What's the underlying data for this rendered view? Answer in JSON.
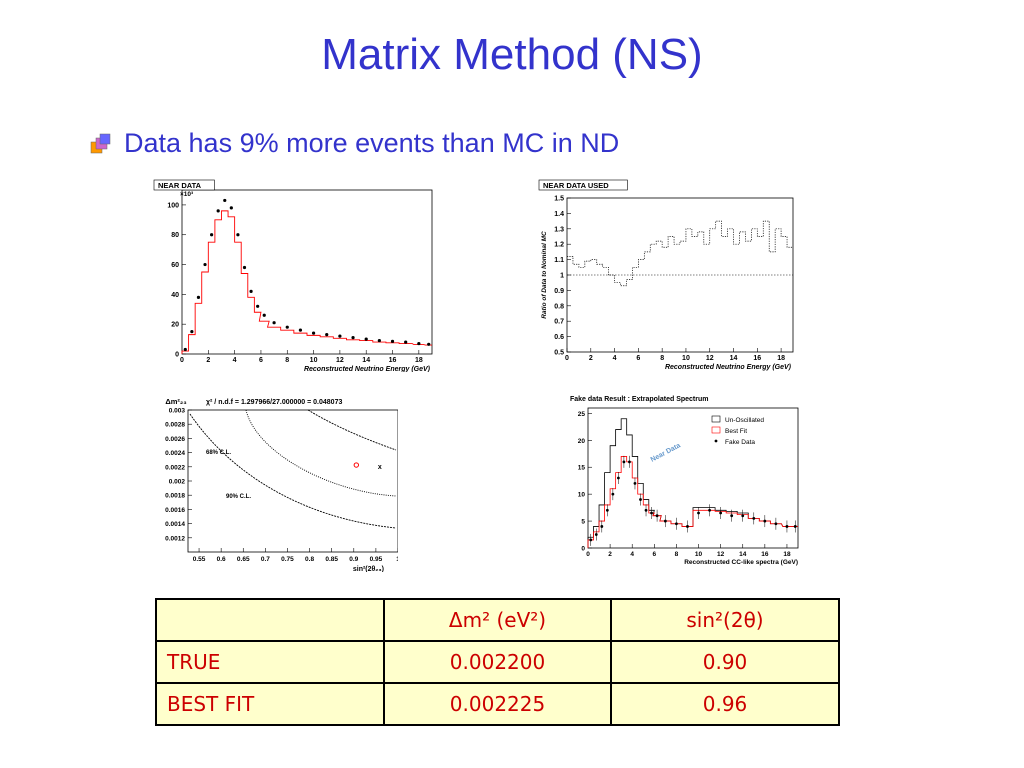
{
  "slide": {
    "title": "Matrix Method (NS)",
    "bullet": "Data has 9% more events than MC in ND",
    "bullet_icon": "stacked-squares-bullet-icon"
  },
  "plots": {
    "near_data": {
      "label": "NEAR DATA",
      "exponent": "×10³",
      "y_ticks": [
        "0",
        "20",
        "40",
        "60",
        "80",
        "100"
      ],
      "x_ticks": [
        "0",
        "2",
        "4",
        "6",
        "8",
        "10",
        "12",
        "14",
        "16",
        "18"
      ],
      "xlabel": "Reconstructed Neutrino Energy (GeV)"
    },
    "near_data_used": {
      "label": "NEAR DATA USED",
      "y_ticks": [
        "0.5",
        "0.6",
        "0.7",
        "0.8",
        "0.9",
        "1",
        "1.1",
        "1.2",
        "1.3",
        "1.4",
        "1.5"
      ],
      "x_ticks": [
        "0",
        "2",
        "4",
        "6",
        "8",
        "10",
        "12",
        "14",
        "16",
        "18"
      ],
      "xlabel": "Reconstructed Neutrino Energy (GeV)",
      "ylabel": "Ratio of Data to Nominal MC"
    },
    "contour": {
      "ylabel": "Δm²₂₃",
      "stat": "χ² / n.d.f = 1.297966/27.000000 = 0.048073",
      "y_ticks": [
        "0.003",
        "0.0028",
        "0.0026",
        "0.0024",
        "0.0022",
        "0.002",
        "0.0018",
        "0.0016",
        "0.0014",
        "0.0012"
      ],
      "x_ticks": [
        "0.55",
        "0.6",
        "0.65",
        "0.7",
        "0.75",
        "0.8",
        "0.85",
        "0.9",
        "0.95",
        "1"
      ],
      "xlabel": "sin²(2θ₂₃)",
      "cl68": "68% C.L.",
      "cl90": "90% C.L.",
      "marker": "x"
    },
    "fake_data": {
      "title": "Fake data Result : Extrapolated Spectrum",
      "legend": [
        "Un-Oscillated",
        "Best Fit",
        "Fake Data"
      ],
      "annotation": "Near Data",
      "y_ticks": [
        "0",
        "5",
        "10",
        "15",
        "20",
        "25"
      ],
      "x_ticks": [
        "0",
        "2",
        "4",
        "6",
        "8",
        "10",
        "12",
        "14",
        "16",
        "18"
      ],
      "xlabel": "Reconstructed CC-like spectra (GeV)"
    }
  },
  "table": {
    "header": [
      "",
      "Δm² (eV²)",
      "sin²(2θ)"
    ],
    "rows": [
      [
        "TRUE",
        "0.002200",
        "0.90"
      ],
      [
        "BEST FIT",
        "0.002225",
        "0.96"
      ]
    ]
  },
  "chart_data": [
    {
      "type": "line",
      "title": "NEAR DATA",
      "xlabel": "Reconstructed Neutrino Energy (GeV)",
      "ylabel": "",
      "xlim": [
        0,
        19
      ],
      "ylim": [
        0,
        110
      ],
      "series": [
        {
          "x": [
            0.25,
            0.75,
            1.25,
            1.75,
            2.25,
            2.75,
            3.25,
            3.75,
            4.25,
            4.75,
            5.25,
            5.75,
            6.25,
            7,
            8,
            9,
            10,
            11,
            12,
            13,
            14,
            15,
            16,
            17,
            18,
            18.75
          ],
          "values": [
            3,
            15,
            38,
            60,
            80,
            96,
            103,
            98,
            80,
            58,
            42,
            32,
            26,
            21,
            18,
            16,
            14,
            13,
            12,
            11,
            10,
            9,
            8.5,
            8,
            7,
            6.5
          ],
          "color": "#000000"
        },
        {
          "x": [
            0.25,
            0.75,
            1.25,
            1.75,
            2.25,
            2.75,
            3.25,
            3.75,
            4.25,
            4.75,
            5.25,
            5.75,
            6.25,
            7,
            8,
            9,
            10,
            11,
            12,
            13,
            14,
            15,
            16,
            17,
            18,
            18.75
          ],
          "values": [
            2,
            13,
            34,
            55,
            75,
            90,
            96,
            92,
            75,
            54,
            38,
            28,
            22,
            18,
            16,
            14,
            12.5,
            11.5,
            10.5,
            9.5,
            9,
            8,
            7.5,
            7,
            6.3,
            6
          ],
          "color": "#ff0000"
        }
      ]
    },
    {
      "type": "line",
      "title": "NEAR DATA USED",
      "xlabel": "Reconstructed Neutrino Energy (GeV)",
      "ylabel": "Ratio of Data to Nominal MC",
      "xlim": [
        0,
        19
      ],
      "ylim": [
        0.5,
        1.5
      ],
      "series": [
        {
          "x": [
            0,
            0.5,
            1,
            1.5,
            2,
            2.5,
            3,
            3.5,
            4,
            4.5,
            5,
            5.5,
            6,
            6.5,
            7,
            7.5,
            8,
            8.5,
            9,
            9.5,
            10,
            10.5,
            11,
            11.5,
            12,
            12.5,
            13,
            13.5,
            14,
            14.5,
            15,
            15.5,
            16,
            16.5,
            17,
            17.5,
            18,
            18.5
          ],
          "values": [
            1.12,
            1.07,
            1.05,
            1.09,
            1.1,
            1.07,
            1.05,
            1.0,
            0.95,
            0.93,
            0.97,
            1.05,
            1.1,
            1.15,
            1.2,
            1.22,
            1.18,
            1.25,
            1.2,
            1.22,
            1.3,
            1.25,
            1.28,
            1.2,
            1.3,
            1.35,
            1.25,
            1.3,
            1.2,
            1.28,
            1.22,
            1.3,
            1.25,
            1.35,
            1.15,
            1.3,
            1.25,
            1.18
          ],
          "color": "#000000"
        }
      ],
      "reference_line": 1.0
    },
    {
      "type": "scatter",
      "title": "",
      "xlabel": "sin²(2θ₂₃)",
      "ylabel": "Δm²₂₃",
      "xlim": [
        0.525,
        1.0
      ],
      "ylim": [
        0.001,
        0.003
      ],
      "series": [
        {
          "name": "Best Fit",
          "x": [
            0.96
          ],
          "values": [
            0.002225
          ],
          "color": "#ff0000"
        },
        {
          "name": "True",
          "x": [
            0.9
          ],
          "values": [
            0.0022
          ],
          "color": "#000000"
        }
      ]
    },
    {
      "type": "line",
      "title": "Fake data Result : Extrapolated Spectrum",
      "xlabel": "Reconstructed CC-like spectra (GeV)",
      "ylabel": "",
      "xlim": [
        0,
        19
      ],
      "ylim": [
        0,
        26
      ],
      "series": [
        {
          "name": "Un-Oscillated",
          "x": [
            0.25,
            0.75,
            1.25,
            1.75,
            2.25,
            2.75,
            3.25,
            3.75,
            4.25,
            4.75,
            5.25,
            5.75,
            6.25,
            7,
            8,
            9,
            10,
            11,
            12,
            13,
            14,
            15,
            16,
            17,
            18,
            18.75
          ],
          "values": [
            2,
            4,
            8,
            14,
            19,
            22,
            24,
            21,
            17,
            12,
            9,
            7,
            6,
            5,
            4.5,
            4,
            7.5,
            7.5,
            7,
            6.8,
            6.5,
            5.5,
            5,
            4.5,
            4,
            4
          ],
          "color": "#000000"
        },
        {
          "name": "Best Fit",
          "x": [
            0.25,
            0.75,
            1.25,
            1.75,
            2.25,
            2.75,
            3.25,
            3.75,
            4.25,
            4.75,
            5.25,
            5.75,
            6.25,
            7,
            8,
            9,
            10,
            11,
            12,
            13,
            14,
            15,
            16,
            17,
            18,
            18.75
          ],
          "values": [
            1.5,
            3,
            5,
            8,
            11,
            14,
            17,
            16,
            13,
            10,
            8,
            6.5,
            6,
            5,
            4.5,
            4,
            7,
            7,
            6.8,
            6.5,
            6.2,
            5.5,
            5,
            4.5,
            4,
            4
          ],
          "color": "#ff0000"
        },
        {
          "name": "Fake Data",
          "x": [
            0.25,
            0.75,
            1.25,
            1.75,
            2.25,
            2.75,
            3.25,
            3.75,
            4.25,
            4.75,
            5.25,
            5.75,
            6.25,
            7,
            8,
            9,
            10,
            11,
            12,
            13,
            14,
            15,
            16,
            17,
            18,
            18.75
          ],
          "values": [
            1.5,
            2.5,
            4,
            7,
            10,
            13,
            16,
            16,
            12,
            9,
            7,
            6.5,
            6,
            5,
            4.5,
            4,
            6.5,
            7,
            6.5,
            6,
            6,
            5.5,
            5,
            4.5,
            4,
            4
          ],
          "color": "#000000"
        }
      ]
    }
  ]
}
